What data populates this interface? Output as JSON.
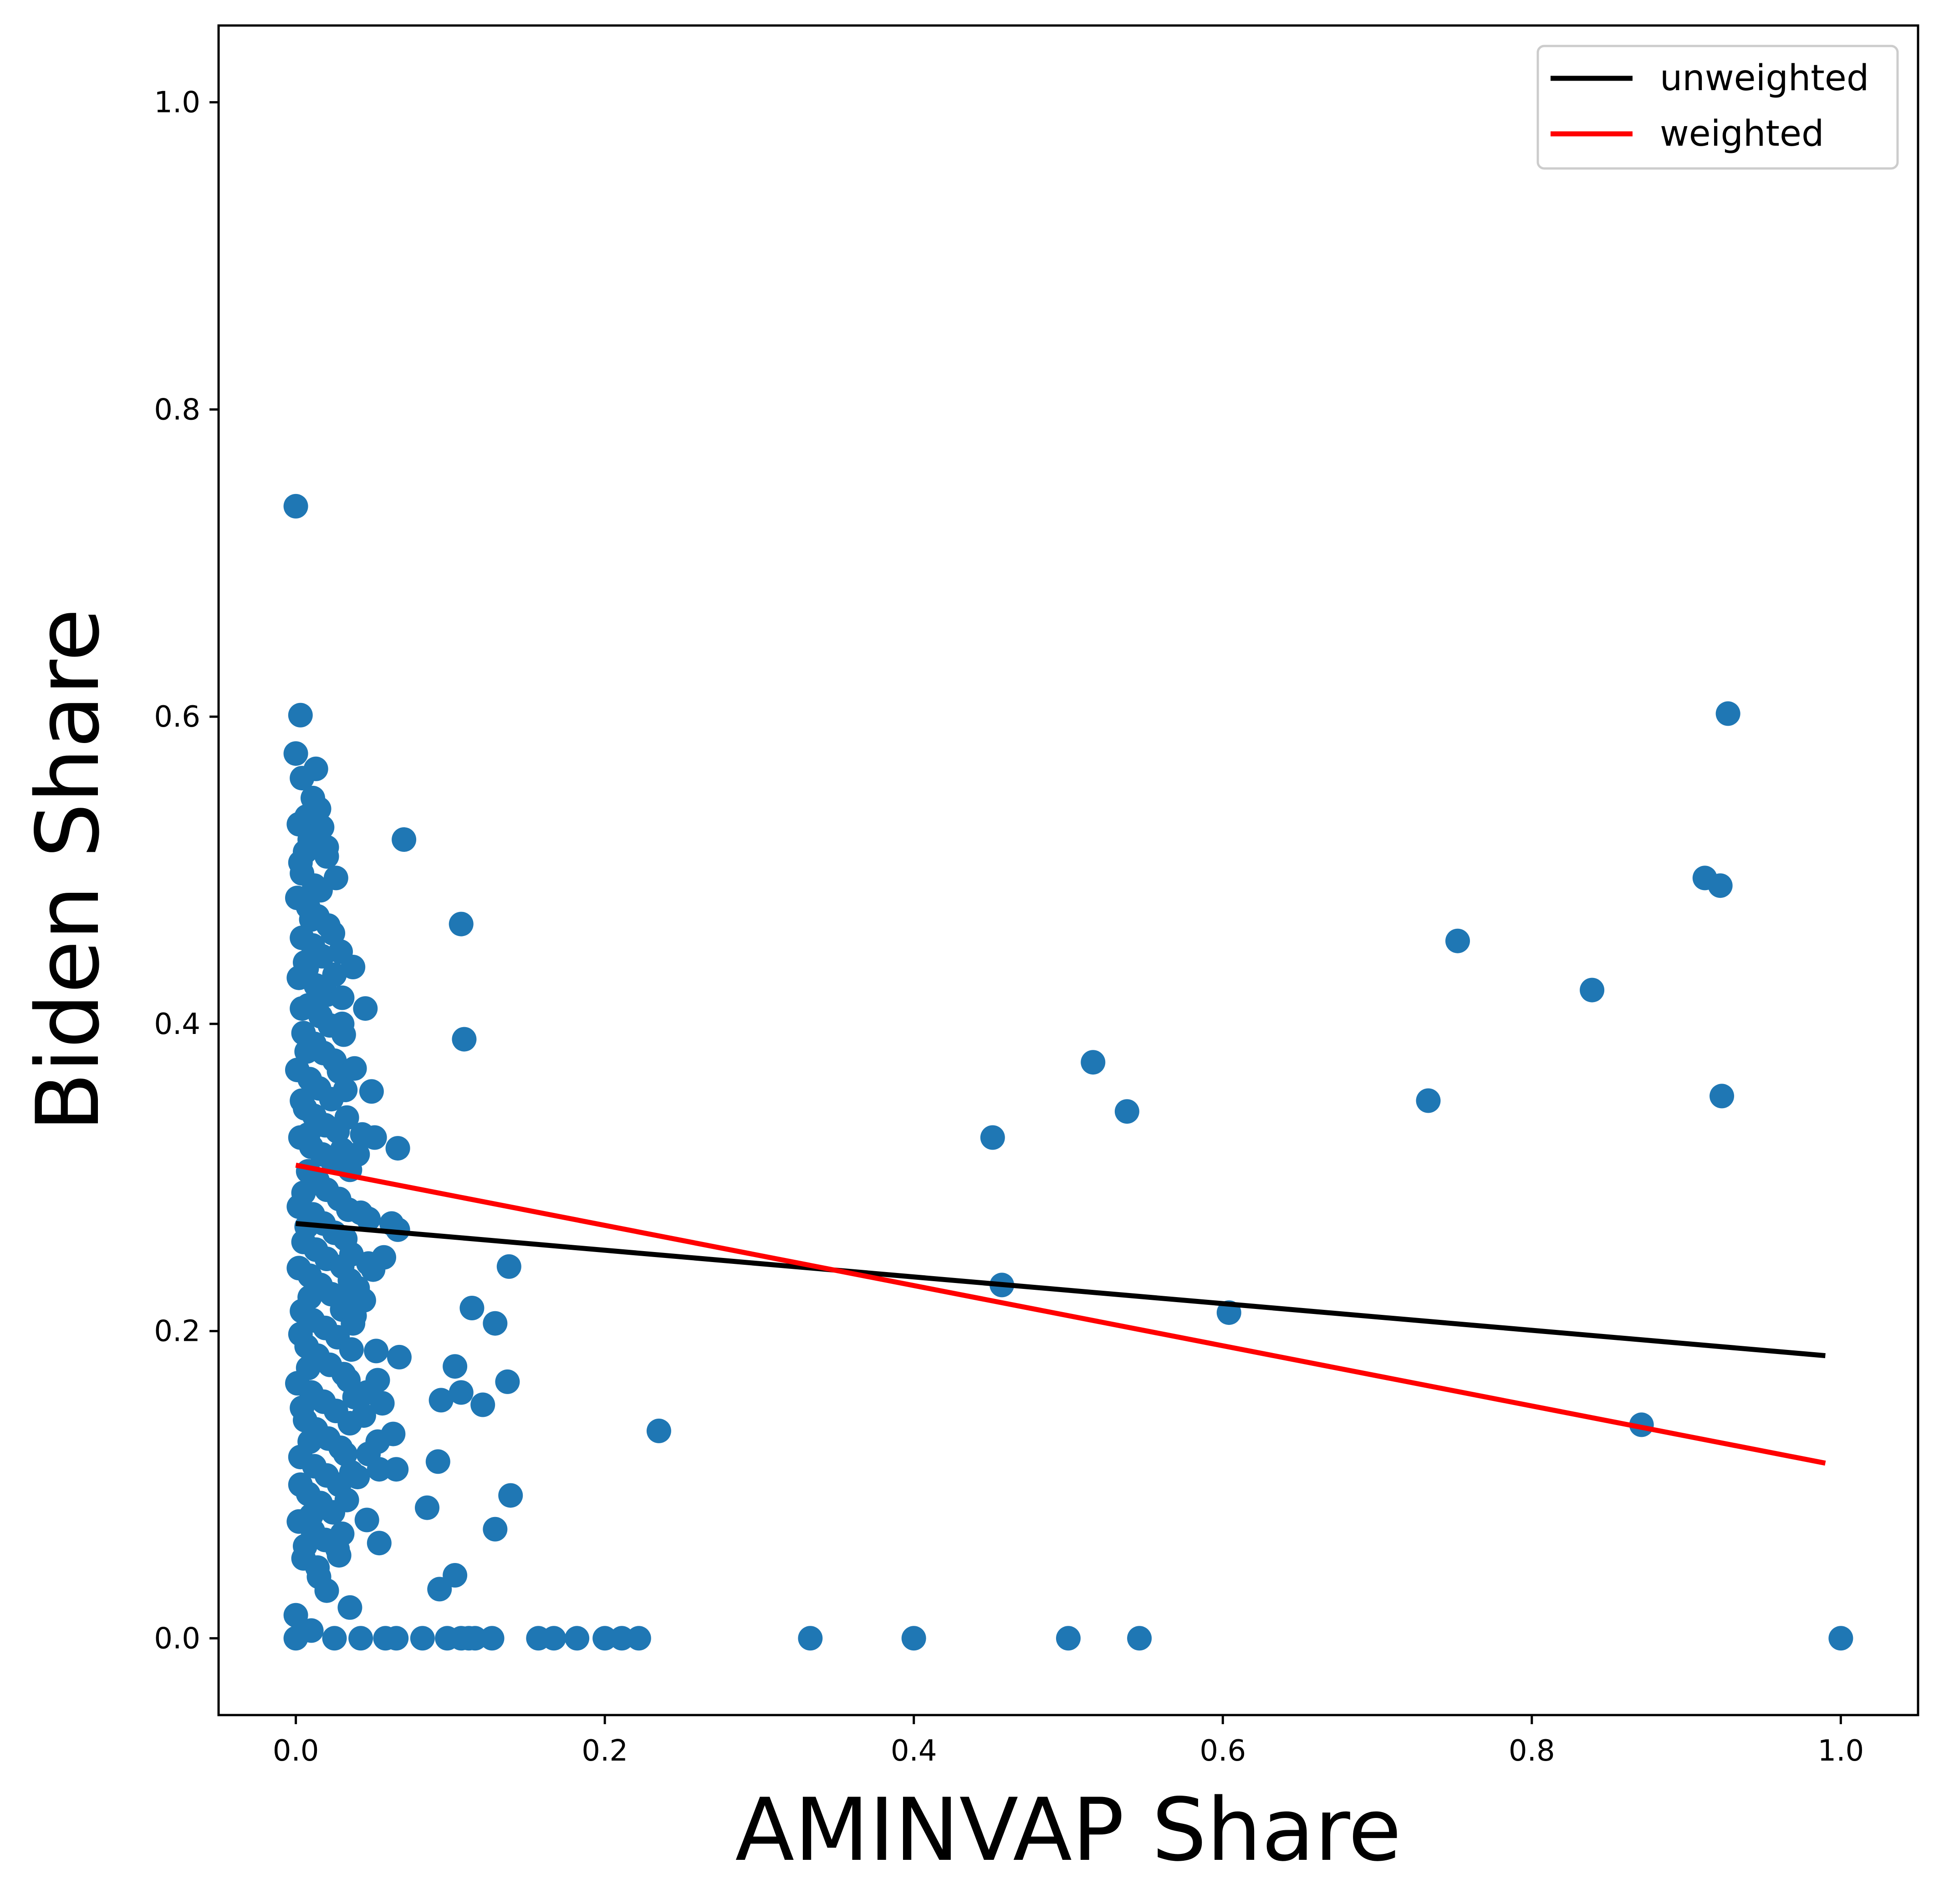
{
  "chart_data": {
    "type": "scatter",
    "title": "",
    "xlabel": "AMINVAP Share",
    "ylabel": "Biden Share",
    "xlim": [
      -0.05,
      1.05
    ],
    "ylim": [
      -0.05,
      1.05
    ],
    "xticks": [
      {
        "value": 0.0,
        "label": "0.0"
      },
      {
        "value": 0.2,
        "label": "0.2"
      },
      {
        "value": 0.4,
        "label": "0.4"
      },
      {
        "value": 0.6,
        "label": "0.6"
      },
      {
        "value": 0.8,
        "label": "0.8"
      },
      {
        "value": 1.0,
        "label": "1.0"
      }
    ],
    "yticks": [
      {
        "value": 0.0,
        "label": "0.0"
      },
      {
        "value": 0.2,
        "label": "0.2"
      },
      {
        "value": 0.4,
        "label": "0.4"
      },
      {
        "value": 0.6,
        "label": "0.6"
      },
      {
        "value": 0.8,
        "label": "0.8"
      },
      {
        "value": 1.0,
        "label": "1.0"
      }
    ],
    "grid": false,
    "legend_position": "top-right",
    "point_color": "#1f77b4",
    "lines": [
      {
        "name": "unweighted",
        "color": "#000000",
        "x": [
          0.0,
          0.99
        ],
        "y": [
          0.27,
          0.184
        ]
      },
      {
        "name": "weighted",
        "color": "#ff0000",
        "x": [
          0.0,
          0.99
        ],
        "y": [
          0.308,
          0.114
        ]
      }
    ],
    "points": [
      [
        0.0,
        0.737
      ],
      [
        0.003,
        0.601
      ],
      [
        0.0,
        0.576
      ],
      [
        0.013,
        0.566
      ],
      [
        0.004,
        0.56
      ],
      [
        0.011,
        0.547
      ],
      [
        0.007,
        0.535
      ],
      [
        0.002,
        0.53
      ],
      [
        0.017,
        0.528
      ],
      [
        0.009,
        0.52
      ],
      [
        0.02,
        0.515
      ],
      [
        0.006,
        0.512
      ],
      [
        0.02,
        0.509
      ],
      [
        0.004,
        0.498
      ],
      [
        0.012,
        0.49
      ],
      [
        0.016,
        0.487
      ],
      [
        0.001,
        0.482
      ],
      [
        0.008,
        0.476
      ],
      [
        0.014,
        0.47
      ],
      [
        0.021,
        0.464
      ],
      [
        0.024,
        0.459
      ],
      [
        0.004,
        0.456
      ],
      [
        0.011,
        0.451
      ],
      [
        0.017,
        0.444
      ],
      [
        0.007,
        0.436
      ],
      [
        0.002,
        0.43
      ],
      [
        0.013,
        0.425
      ],
      [
        0.02,
        0.419
      ],
      [
        0.008,
        0.412
      ],
      [
        0.016,
        0.405
      ],
      [
        0.022,
        0.399
      ],
      [
        0.005,
        0.394
      ],
      [
        0.012,
        0.387
      ],
      [
        0.018,
        0.381
      ],
      [
        0.025,
        0.376
      ],
      [
        0.001,
        0.37
      ],
      [
        0.009,
        0.364
      ],
      [
        0.015,
        0.358
      ],
      [
        0.023,
        0.351
      ],
      [
        0.006,
        0.345
      ],
      [
        0.012,
        0.34
      ],
      [
        0.019,
        0.334
      ],
      [
        0.027,
        0.33
      ],
      [
        0.003,
        0.326
      ],
      [
        0.01,
        0.32
      ],
      [
        0.017,
        0.315
      ],
      [
        0.024,
        0.31
      ],
      [
        0.008,
        0.304
      ],
      [
        0.014,
        0.298
      ],
      [
        0.02,
        0.292
      ],
      [
        0.028,
        0.286
      ],
      [
        0.002,
        0.281
      ],
      [
        0.011,
        0.276
      ],
      [
        0.018,
        0.27
      ],
      [
        0.025,
        0.264
      ],
      [
        0.005,
        0.258
      ],
      [
        0.013,
        0.253
      ],
      [
        0.02,
        0.247
      ],
      [
        0.03,
        0.242
      ],
      [
        0.009,
        0.236
      ],
      [
        0.016,
        0.23
      ],
      [
        0.023,
        0.224
      ],
      [
        0.033,
        0.219
      ],
      [
        0.004,
        0.213
      ],
      [
        0.011,
        0.207
      ],
      [
        0.019,
        0.202
      ],
      [
        0.027,
        0.196
      ],
      [
        0.007,
        0.19
      ],
      [
        0.014,
        0.184
      ],
      [
        0.022,
        0.178
      ],
      [
        0.031,
        0.172
      ],
      [
        0.001,
        0.166
      ],
      [
        0.01,
        0.16
      ],
      [
        0.018,
        0.154
      ],
      [
        0.026,
        0.148
      ],
      [
        0.006,
        0.142
      ],
      [
        0.013,
        0.136
      ],
      [
        0.021,
        0.13
      ],
      [
        0.029,
        0.124
      ],
      [
        0.003,
        0.118
      ],
      [
        0.012,
        0.112
      ],
      [
        0.02,
        0.106
      ],
      [
        0.028,
        0.1
      ],
      [
        0.008,
        0.094
      ],
      [
        0.016,
        0.088
      ],
      [
        0.024,
        0.082
      ],
      [
        0.002,
        0.076
      ],
      [
        0.011,
        0.07
      ],
      [
        0.019,
        0.064
      ],
      [
        0.027,
        0.058
      ],
      [
        0.005,
        0.052
      ],
      [
        0.014,
        0.046
      ],
      [
        0.0,
        0.015
      ],
      [
        0.01,
        0.005
      ],
      [
        0.015,
        0.54
      ],
      [
        0.003,
        0.505
      ],
      [
        0.026,
        0.495
      ],
      [
        0.01,
        0.468
      ],
      [
        0.029,
        0.447
      ],
      [
        0.006,
        0.44
      ],
      [
        0.025,
        0.432
      ],
      [
        0.03,
        0.417
      ],
      [
        0.004,
        0.41
      ],
      [
        0.031,
        0.393
      ],
      [
        0.007,
        0.382
      ],
      [
        0.028,
        0.369
      ],
      [
        0.032,
        0.357
      ],
      [
        0.004,
        0.35
      ],
      [
        0.033,
        0.339
      ],
      [
        0.008,
        0.328
      ],
      [
        0.03,
        0.318
      ],
      [
        0.035,
        0.305
      ],
      [
        0.005,
        0.29
      ],
      [
        0.034,
        0.279
      ],
      [
        0.007,
        0.268
      ],
      [
        0.032,
        0.26
      ],
      [
        0.036,
        0.25
      ],
      [
        0.002,
        0.241
      ],
      [
        0.035,
        0.233
      ],
      [
        0.009,
        0.222
      ],
      [
        0.03,
        0.214
      ],
      [
        0.037,
        0.205
      ],
      [
        0.003,
        0.198
      ],
      [
        0.036,
        0.188
      ],
      [
        0.008,
        0.176
      ],
      [
        0.034,
        0.168
      ],
      [
        0.038,
        0.157
      ],
      [
        0.004,
        0.15
      ],
      [
        0.035,
        0.14
      ],
      [
        0.009,
        0.128
      ],
      [
        0.032,
        0.12
      ],
      [
        0.036,
        0.108
      ],
      [
        0.003,
        0.1
      ],
      [
        0.033,
        0.09
      ],
      [
        0.01,
        0.08
      ],
      [
        0.03,
        0.068
      ],
      [
        0.006,
        0.06
      ],
      [
        0.028,
        0.054
      ],
      [
        0.02,
        0.031
      ],
      [
        0.015,
        0.04
      ],
      [
        0.045,
        0.41
      ],
      [
        0.037,
        0.437
      ],
      [
        0.03,
        0.4
      ],
      [
        0.038,
        0.371
      ],
      [
        0.049,
        0.356
      ],
      [
        0.043,
        0.328
      ],
      [
        0.051,
        0.326
      ],
      [
        0.04,
        0.315
      ],
      [
        0.066,
        0.319
      ],
      [
        0.042,
        0.277
      ],
      [
        0.047,
        0.273
      ],
      [
        0.062,
        0.27
      ],
      [
        0.066,
        0.266
      ],
      [
        0.047,
        0.244
      ],
      [
        0.057,
        0.248
      ],
      [
        0.05,
        0.24
      ],
      [
        0.04,
        0.228
      ],
      [
        0.044,
        0.22
      ],
      [
        0.038,
        0.21
      ],
      [
        0.052,
        0.187
      ],
      [
        0.067,
        0.183
      ],
      [
        0.053,
        0.168
      ],
      [
        0.046,
        0.16
      ],
      [
        0.056,
        0.153
      ],
      [
        0.044,
        0.145
      ],
      [
        0.063,
        0.133
      ],
      [
        0.053,
        0.128
      ],
      [
        0.047,
        0.12
      ],
      [
        0.054,
        0.11
      ],
      [
        0.065,
        0.11
      ],
      [
        0.04,
        0.105
      ],
      [
        0.046,
        0.077
      ],
      [
        0.054,
        0.062
      ],
      [
        0.035,
        0.02
      ],
      [
        0.07,
        0.52
      ],
      [
        0.107,
        0.465
      ],
      [
        0.109,
        0.39
      ],
      [
        0.138,
        0.242
      ],
      [
        0.114,
        0.215
      ],
      [
        0.129,
        0.205
      ],
      [
        0.103,
        0.177
      ],
      [
        0.137,
        0.167
      ],
      [
        0.107,
        0.16
      ],
      [
        0.094,
        0.155
      ],
      [
        0.121,
        0.152
      ],
      [
        0.235,
        0.135
      ],
      [
        0.092,
        0.115
      ],
      [
        0.139,
        0.093
      ],
      [
        0.085,
        0.085
      ],
      [
        0.129,
        0.071
      ],
      [
        0.103,
        0.041
      ],
      [
        0.093,
        0.032
      ],
      [
        0.451,
        0.326
      ],
      [
        0.516,
        0.375
      ],
      [
        0.538,
        0.343
      ],
      [
        0.457,
        0.23
      ],
      [
        0.604,
        0.212
      ],
      [
        0.733,
        0.35
      ],
      [
        0.752,
        0.454
      ],
      [
        0.839,
        0.422
      ],
      [
        0.871,
        0.139
      ],
      [
        0.912,
        0.495
      ],
      [
        0.922,
        0.49
      ],
      [
        0.923,
        0.353
      ],
      [
        0.927,
        0.602
      ],
      [
        0.0,
        0.0
      ],
      [
        0.025,
        0.0
      ],
      [
        0.042,
        0.0
      ],
      [
        0.058,
        0.0
      ],
      [
        0.065,
        0.0
      ],
      [
        0.082,
        0.0
      ],
      [
        0.098,
        0.0
      ],
      [
        0.107,
        0.0
      ],
      [
        0.112,
        0.0
      ],
      [
        0.116,
        0.0
      ],
      [
        0.127,
        0.0
      ],
      [
        0.157,
        0.0
      ],
      [
        0.167,
        0.0
      ],
      [
        0.182,
        0.0
      ],
      [
        0.2,
        0.0
      ],
      [
        0.211,
        0.0
      ],
      [
        0.222,
        0.0
      ],
      [
        0.333,
        0.0
      ],
      [
        0.4,
        0.0
      ],
      [
        0.5,
        0.0
      ],
      [
        0.546,
        0.0
      ],
      [
        1.0,
        0.0
      ]
    ]
  }
}
